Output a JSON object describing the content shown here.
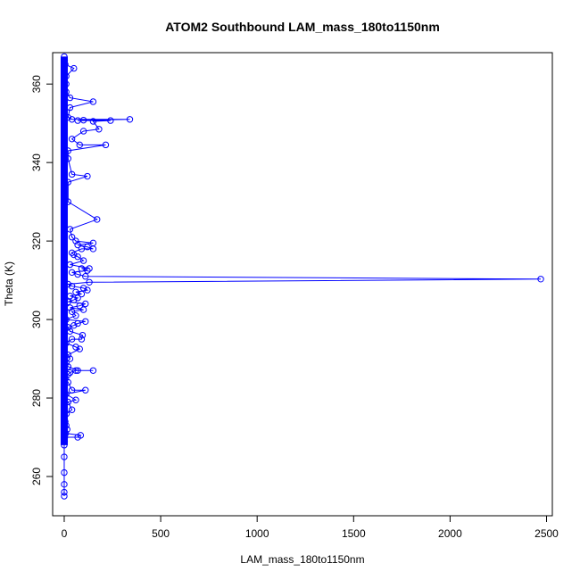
{
  "chart_data": {
    "type": "scatter",
    "title": "ATOM2 Southbound LAM_mass_180to1150nm",
    "xlabel": "LAM_mass_180to1150nm",
    "ylabel": "Theta (K)",
    "xlim": [
      -60,
      2530
    ],
    "ylim": [
      250,
      368
    ],
    "x_ticks": [
      0,
      500,
      1000,
      1500,
      2000,
      2500
    ],
    "y_ticks": [
      260,
      280,
      300,
      320,
      340,
      360
    ],
    "grid": false,
    "color": "#0000ff",
    "points": [
      [
        0,
        255
      ],
      [
        0,
        256
      ],
      [
        0,
        258
      ],
      [
        0,
        261
      ],
      [
        0,
        265
      ],
      [
        0,
        268
      ],
      [
        2,
        269
      ],
      [
        3,
        270
      ],
      [
        8,
        271
      ],
      [
        85,
        270.5
      ],
      [
        70,
        270
      ],
      [
        15,
        272
      ],
      [
        10,
        273
      ],
      [
        5,
        274
      ],
      [
        12,
        276
      ],
      [
        40,
        277
      ],
      [
        20,
        279
      ],
      [
        60,
        279.5
      ],
      [
        10,
        281
      ],
      [
        110,
        282
      ],
      [
        40,
        282
      ],
      [
        20,
        284
      ],
      [
        8,
        285
      ],
      [
        20,
        286
      ],
      [
        30,
        286.5
      ],
      [
        60,
        287
      ],
      [
        150,
        287
      ],
      [
        70,
        287
      ],
      [
        20,
        288
      ],
      [
        10,
        289
      ],
      [
        30,
        290
      ],
      [
        20,
        291
      ],
      [
        80,
        292.5
      ],
      [
        60,
        293
      ],
      [
        10,
        294
      ],
      [
        40,
        295
      ],
      [
        90,
        295
      ],
      [
        95,
        296
      ],
      [
        30,
        297
      ],
      [
        20,
        298
      ],
      [
        50,
        298.5
      ],
      [
        70,
        299
      ],
      [
        110,
        299.5
      ],
      [
        10,
        300
      ],
      [
        60,
        301
      ],
      [
        40,
        302
      ],
      [
        100,
        302.5
      ],
      [
        30,
        303
      ],
      [
        80,
        303.5
      ],
      [
        110,
        304
      ],
      [
        20,
        304.5
      ],
      [
        50,
        305
      ],
      [
        70,
        305.5
      ],
      [
        30,
        306
      ],
      [
        90,
        306.5
      ],
      [
        60,
        307
      ],
      [
        120,
        307.5
      ],
      [
        100,
        308
      ],
      [
        40,
        308.5
      ],
      [
        20,
        309
      ],
      [
        130,
        309.5
      ],
      [
        2470,
        310.3
      ],
      [
        110,
        311
      ],
      [
        70,
        311.5
      ],
      [
        40,
        312
      ],
      [
        120,
        312.5
      ],
      [
        90,
        313
      ],
      [
        130,
        313
      ],
      [
        30,
        314
      ],
      [
        100,
        315
      ],
      [
        70,
        316
      ],
      [
        50,
        316.5
      ],
      [
        40,
        317
      ],
      [
        90,
        318
      ],
      [
        150,
        318
      ],
      [
        120,
        318.5
      ],
      [
        70,
        319
      ],
      [
        150,
        319.5
      ],
      [
        60,
        320
      ],
      [
        40,
        321
      ],
      [
        30,
        323
      ],
      [
        170,
        325.5
      ],
      [
        20,
        330
      ],
      [
        20,
        335
      ],
      [
        120,
        336.5
      ],
      [
        40,
        337
      ],
      [
        20,
        341
      ],
      [
        20,
        343
      ],
      [
        215,
        344.5
      ],
      [
        80,
        344.5
      ],
      [
        40,
        346
      ],
      [
        180,
        348.5
      ],
      [
        100,
        348
      ],
      [
        340,
        351
      ],
      [
        240,
        350.7
      ],
      [
        150,
        350.5
      ],
      [
        100,
        350.8
      ],
      [
        70,
        350.7
      ],
      [
        40,
        351
      ],
      [
        20,
        351.5
      ],
      [
        30,
        354
      ],
      [
        150,
        355.5
      ],
      [
        30,
        356.5
      ],
      [
        10,
        358
      ],
      [
        10,
        360
      ],
      [
        10,
        362
      ],
      [
        50,
        364
      ],
      [
        5,
        365
      ],
      [
        2,
        366
      ],
      [
        0,
        367
      ]
    ]
  }
}
